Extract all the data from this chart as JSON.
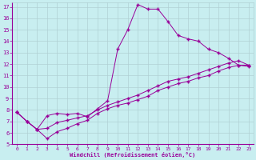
{
  "xlabel": "Windchill (Refroidissement éolien,°C)",
  "bg_color": "#c8eef0",
  "line_color": "#990099",
  "grid_color": "#b0d0d4",
  "xlim": [
    -0.5,
    23.5
  ],
  "ylim": [
    5,
    17.4
  ],
  "xticks": [
    0,
    1,
    2,
    3,
    4,
    5,
    6,
    7,
    8,
    9,
    10,
    11,
    12,
    13,
    14,
    15,
    16,
    17,
    18,
    19,
    20,
    21,
    22,
    23
  ],
  "yticks": [
    5,
    6,
    7,
    8,
    9,
    10,
    11,
    12,
    13,
    14,
    15,
    16,
    17
  ],
  "line1_x": [
    0,
    1,
    2,
    3,
    4,
    5,
    6,
    7,
    8,
    9,
    10,
    11,
    12,
    13,
    14,
    15,
    16,
    17,
    18,
    19,
    20,
    21,
    22,
    23
  ],
  "line1_y": [
    7.8,
    7.0,
    6.3,
    7.5,
    7.7,
    7.6,
    7.7,
    7.4,
    8.1,
    8.8,
    13.3,
    15.0,
    17.2,
    16.8,
    16.8,
    15.7,
    14.5,
    14.2,
    14.0,
    13.3,
    13.0,
    12.5,
    11.9,
    11.8
  ],
  "line2_x": [
    0,
    1,
    2,
    3,
    4,
    5,
    6,
    7,
    8,
    9,
    10,
    11,
    12,
    13,
    14,
    15,
    16,
    17,
    18,
    19,
    20,
    21,
    22,
    23
  ],
  "line2_y": [
    7.8,
    7.0,
    6.3,
    6.4,
    6.9,
    7.1,
    7.3,
    7.5,
    8.0,
    8.4,
    8.7,
    9.0,
    9.3,
    9.7,
    10.1,
    10.5,
    10.7,
    10.9,
    11.2,
    11.5,
    11.8,
    12.1,
    12.3,
    11.9
  ],
  "line3_x": [
    0,
    1,
    2,
    3,
    4,
    5,
    6,
    7,
    8,
    9,
    10,
    11,
    12,
    13,
    14,
    15,
    16,
    17,
    18,
    19,
    20,
    21,
    22,
    23
  ],
  "line3_y": [
    7.8,
    7.0,
    6.3,
    5.5,
    6.1,
    6.4,
    6.8,
    7.1,
    7.7,
    8.1,
    8.4,
    8.6,
    8.9,
    9.2,
    9.7,
    10.0,
    10.3,
    10.5,
    10.8,
    11.0,
    11.4,
    11.7,
    11.9,
    11.9
  ]
}
